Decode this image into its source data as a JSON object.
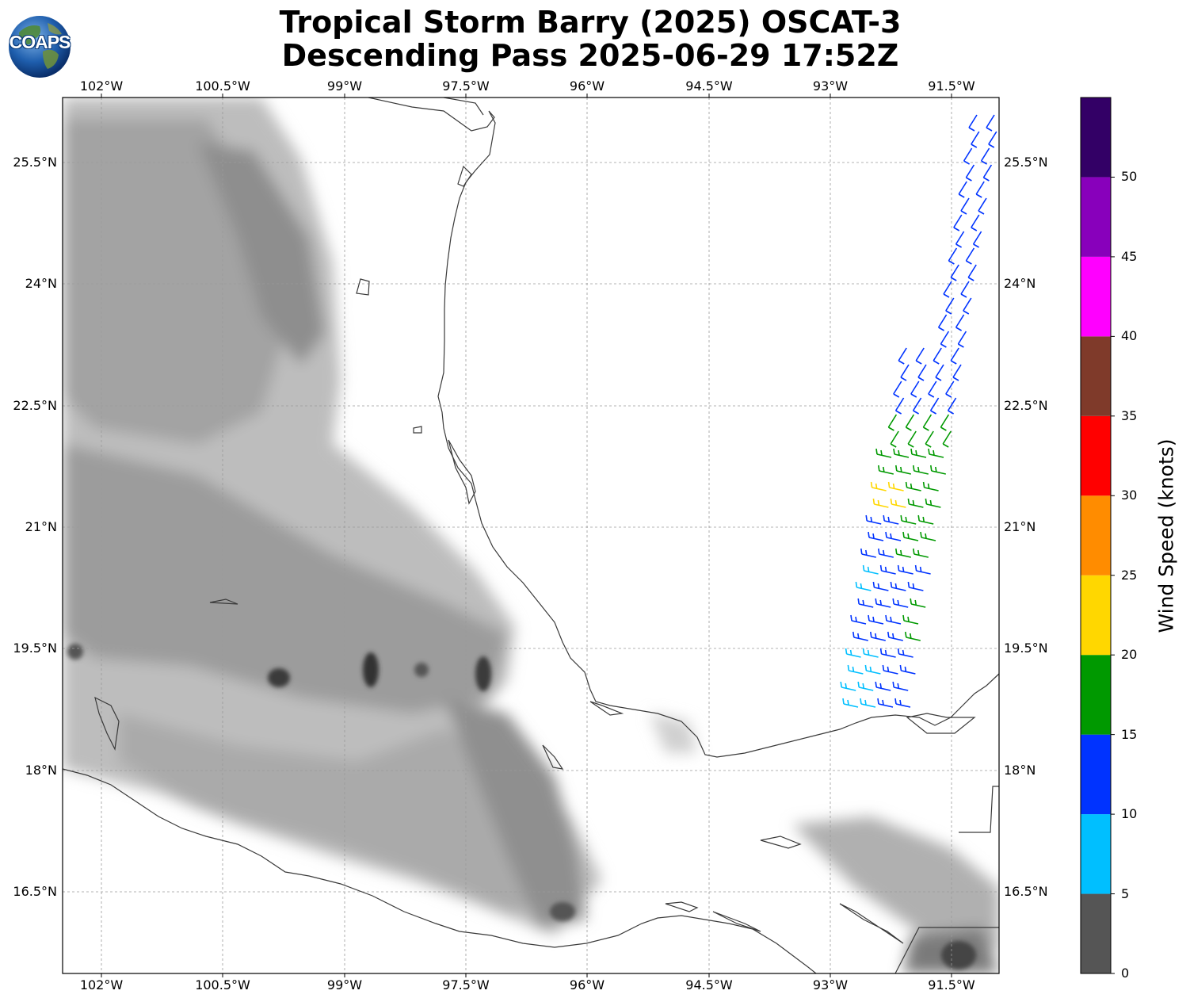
{
  "title": {
    "line1": "Tropical Storm Barry (2025) OSCAT-3",
    "line2": "Descending Pass 2025-06-29 17:52Z"
  },
  "logo": {
    "text": "COAPS"
  },
  "map": {
    "lon_ticks": [
      "102°W",
      "100.5°W",
      "99°W",
      "97.5°W",
      "96°W",
      "94.5°W",
      "93°W",
      "91.5°W"
    ],
    "lat_ticks": [
      "25.5°N",
      "24°N",
      "22.5°N",
      "21°N",
      "19.5°N",
      "18°N",
      "16.5°N"
    ],
    "extent": {
      "lon_min": -102.5,
      "lon_max": -90.9,
      "lat_min": 15.5,
      "lat_max": 26.3
    }
  },
  "colorbar": {
    "label": "Wind Speed (knots)",
    "bounds": [
      0,
      5,
      10,
      15,
      20,
      25,
      30,
      35,
      40,
      45,
      50,
      55
    ],
    "colors": [
      "#555555",
      "#00bfff",
      "#0033ff",
      "#009900",
      "#ffd700",
      "#ff8c00",
      "#ff0000",
      "#7f3a2a",
      "#ff00ff",
      "#8800bb",
      "#330066"
    ],
    "tick_labels": [
      "0",
      "5",
      "10",
      "15",
      "20",
      "25",
      "30",
      "35",
      "40",
      "45",
      "50"
    ]
  }
}
